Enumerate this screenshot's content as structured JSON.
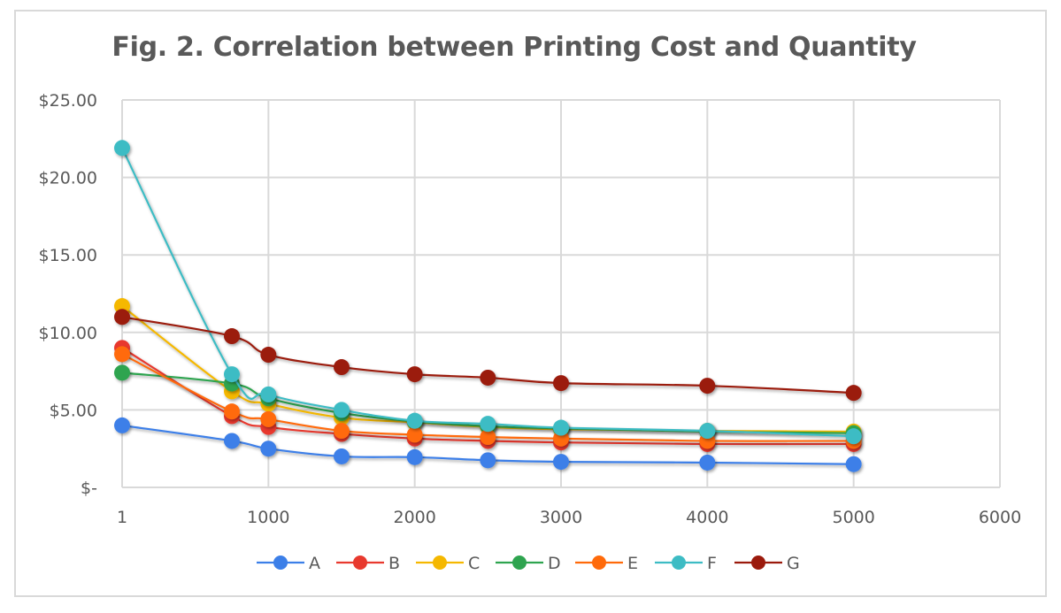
{
  "chart_data": {
    "type": "line",
    "title": "Fig. 2. Correlation between Printing Cost and Quantity",
    "xlabel": "",
    "ylabel": "",
    "x": [
      1,
      750,
      1000,
      1500,
      2000,
      2500,
      3000,
      4000,
      5000
    ],
    "xlim": [
      0,
      6000
    ],
    "ylim": [
      0,
      25
    ],
    "x_ticks": [
      {
        "value": 0,
        "label": "1"
      },
      {
        "value": 1000,
        "label": "1000"
      },
      {
        "value": 2000,
        "label": "2000"
      },
      {
        "value": 3000,
        "label": "3000"
      },
      {
        "value": 4000,
        "label": "4000"
      },
      {
        "value": 5000,
        "label": "5000"
      },
      {
        "value": 6000,
        "label": "6000"
      }
    ],
    "y_ticks": [
      {
        "value": 0,
        "label": "$-"
      },
      {
        "value": 5,
        "label": "$5.00"
      },
      {
        "value": 10,
        "label": "$10.00"
      },
      {
        "value": 15,
        "label": "$15.00"
      },
      {
        "value": 20,
        "label": "$20.00"
      },
      {
        "value": 25,
        "label": "$25.00"
      }
    ],
    "grid": true,
    "legend_position": "bottom",
    "series": [
      {
        "name": "A",
        "color": "#3c7fe8",
        "values": [
          4.0,
          3.0,
          2.5,
          2.0,
          1.95,
          1.75,
          1.65,
          1.6,
          1.5
        ]
      },
      {
        "name": "B",
        "color": "#e8392e",
        "values": [
          9.0,
          4.6,
          3.9,
          3.45,
          3.15,
          3.0,
          2.9,
          2.8,
          2.8
        ]
      },
      {
        "name": "C",
        "color": "#f5b800",
        "values": [
          11.7,
          6.2,
          5.4,
          4.5,
          4.2,
          3.9,
          3.75,
          3.65,
          3.6
        ]
      },
      {
        "name": "D",
        "color": "#2ea44f",
        "values": [
          7.4,
          6.7,
          5.75,
          4.8,
          4.25,
          3.95,
          3.8,
          3.6,
          3.5
        ]
      },
      {
        "name": "E",
        "color": "#ff6a0a",
        "values": [
          8.6,
          4.9,
          4.4,
          3.65,
          3.4,
          3.25,
          3.15,
          3.0,
          3.0
        ]
      },
      {
        "name": "F",
        "color": "#3dbcc4",
        "values": [
          21.9,
          7.3,
          6.0,
          5.0,
          4.3,
          4.1,
          3.85,
          3.65,
          3.3
        ]
      },
      {
        "name": "G",
        "color": "#9b1a0c",
        "values": [
          11.0,
          9.76,
          8.56,
          7.76,
          7.3,
          7.08,
          6.73,
          6.56,
          6.1
        ]
      }
    ]
  }
}
